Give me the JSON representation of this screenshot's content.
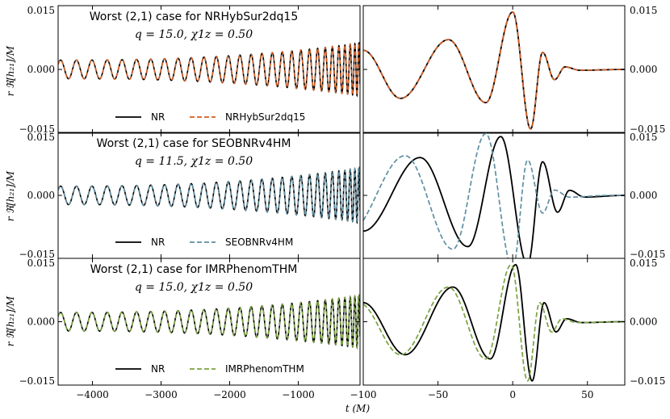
{
  "figure": {
    "xlabel": "t (M)",
    "ylabel": "r ℜ[h₂₁]/M"
  },
  "chart_data": [
    {
      "type": "line",
      "title": "Worst (2,1) case for NRHybSur2dq15",
      "subtitle": "q = 15.0, χ1z = 0.50",
      "model": "NRHybSur2dq15",
      "model_color": "#d35f25",
      "series": [
        {
          "name": "NR",
          "color": "#000000",
          "style": "solid"
        },
        {
          "name": "NRHybSur2dq15",
          "color": "#d35f25",
          "style": "dashed"
        }
      ],
      "left_xlim": [
        -4500,
        -100
      ],
      "left_xticks": [
        -4000,
        -3000,
        -2000,
        -1000
      ],
      "right_xlim": [
        -100,
        75
      ],
      "right_xticks": [
        -100,
        -50,
        0,
        50
      ],
      "ylim": [
        -0.015,
        0.015
      ],
      "yticks": [
        -0.015,
        0.0,
        0.015
      ],
      "ytick_labels": [
        "−0.015",
        "0.000",
        "0.015"
      ],
      "left_amp": [
        0.0022,
        0.0062
      ],
      "ringdown": [
        {
          "t": -100,
          "y": 0.0045
        },
        {
          "t": -75,
          "y": -0.0068
        },
        {
          "t": -43,
          "y": 0.007
        },
        {
          "t": -18,
          "y": -0.0078
        },
        {
          "t": 0,
          "y": 0.0135
        },
        {
          "t": 12,
          "y": -0.014
        },
        {
          "t": 20,
          "y": 0.004
        },
        {
          "t": 28,
          "y": -0.0024
        },
        {
          "t": 35,
          "y": 0.0006
        },
        {
          "t": 45,
          "y": -0.0002
        },
        {
          "t": 75,
          "y": 0.0
        }
      ],
      "model_shift": 0
    },
    {
      "type": "line",
      "title": "Worst (2,1) case for SEOBNRv4HM",
      "subtitle": "q = 11.5, χ1z = 0.50",
      "model": "SEOBNRv4HM",
      "model_color": "#5f8fa3",
      "series": [
        {
          "name": "NR",
          "color": "#000000",
          "style": "solid"
        },
        {
          "name": "SEOBNRv4HM",
          "color": "#5f8fa3",
          "style": "dashed"
        }
      ],
      "left_xlim": [
        -4500,
        -100
      ],
      "left_xticks": [
        -4000,
        -3000,
        -2000,
        -1000
      ],
      "right_xlim": [
        -100,
        75
      ],
      "right_xticks": [
        -100,
        -50,
        0,
        50
      ],
      "ylim": [
        -0.015,
        0.015
      ],
      "yticks": [
        -0.015,
        0.0,
        0.015
      ],
      "ytick_labels": [
        "−0.015",
        "0.000",
        "0.015"
      ],
      "left_amp": [
        0.0022,
        0.0065
      ],
      "ringdown": [
        {
          "t": -100,
          "y": -0.0085
        },
        {
          "t": -62,
          "y": 0.009
        },
        {
          "t": -30,
          "y": -0.0122
        },
        {
          "t": -8,
          "y": 0.014
        },
        {
          "t": 10,
          "y": -0.0165
        },
        {
          "t": 20,
          "y": 0.008
        },
        {
          "t": 30,
          "y": -0.004
        },
        {
          "t": 38,
          "y": 0.0012
        },
        {
          "t": 48,
          "y": -0.0004
        },
        {
          "t": 75,
          "y": 0.0
        }
      ],
      "model_shift": 10,
      "model_scale": 1.05
    },
    {
      "type": "line",
      "title": "Worst (2,1) case for IMRPhenomTHM",
      "subtitle": "q = 15.0, χ1z = 0.50",
      "model": "IMRPhenomTHM",
      "model_color": "#7aa340",
      "series": [
        {
          "name": "NR",
          "color": "#000000",
          "style": "solid"
        },
        {
          "name": "IMRPhenomTHM",
          "color": "#7aa340",
          "style": "dashed"
        }
      ],
      "left_xlim": [
        -4500,
        -100
      ],
      "left_xticks": [
        -4000,
        -3000,
        -2000,
        -1000
      ],
      "right_xlim": [
        -100,
        75
      ],
      "right_xticks": [
        -100,
        -50,
        0,
        50
      ],
      "xtick_labels_left": [
        "−4000",
        "−3000",
        "−2000",
        "−1000"
      ],
      "xtick_labels_right": [
        "−100",
        "−50",
        "0",
        "50"
      ],
      "ylim": [
        -0.015,
        0.015
      ],
      "yticks": [
        -0.015,
        0.0,
        0.015
      ],
      "ytick_labels": [
        "−0.015",
        "0.000",
        "0.015"
      ],
      "left_amp": [
        0.0022,
        0.0062
      ],
      "ringdown": [
        {
          "t": -100,
          "y": 0.0045
        },
        {
          "t": -72,
          "y": -0.0078
        },
        {
          "t": -40,
          "y": 0.0082
        },
        {
          "t": -15,
          "y": -0.0088
        },
        {
          "t": 2,
          "y": 0.0135
        },
        {
          "t": 13,
          "y": -0.014
        },
        {
          "t": 21,
          "y": 0.0045
        },
        {
          "t": 29,
          "y": -0.0024
        },
        {
          "t": 36,
          "y": 0.0007
        },
        {
          "t": 46,
          "y": -0.0002
        },
        {
          "t": 75,
          "y": 0.0
        }
      ],
      "model_shift": 3
    }
  ]
}
